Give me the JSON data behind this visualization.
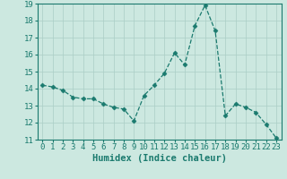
{
  "x": [
    0,
    1,
    2,
    3,
    4,
    5,
    6,
    7,
    8,
    9,
    10,
    11,
    12,
    13,
    14,
    15,
    16,
    17,
    18,
    19,
    20,
    21,
    22,
    23
  ],
  "y": [
    14.2,
    14.1,
    13.9,
    13.5,
    13.4,
    13.4,
    13.1,
    12.9,
    12.8,
    12.1,
    13.6,
    14.2,
    14.9,
    16.1,
    15.4,
    17.7,
    18.9,
    17.4,
    12.4,
    13.1,
    12.9,
    12.6,
    11.9,
    11.1
  ],
  "line_color": "#1a7a6e",
  "marker": "D",
  "marker_size": 2.5,
  "bg_color": "#cce8e0",
  "grid_color": "#aacec6",
  "xlabel": "Humidex (Indice chaleur)",
  "ylim": [
    11,
    19
  ],
  "xlim": [
    -0.5,
    23.5
  ],
  "yticks": [
    11,
    12,
    13,
    14,
    15,
    16,
    17,
    18,
    19
  ],
  "xticks": [
    0,
    1,
    2,
    3,
    4,
    5,
    6,
    7,
    8,
    9,
    10,
    11,
    12,
    13,
    14,
    15,
    16,
    17,
    18,
    19,
    20,
    21,
    22,
    23
  ],
  "xlabel_fontsize": 7.5,
  "tick_fontsize": 6.5
}
